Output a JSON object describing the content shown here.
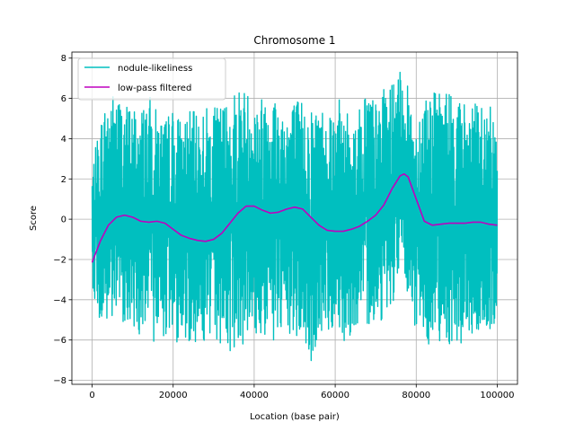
{
  "chart_data": {
    "type": "line",
    "title": "Chromosome 1",
    "xlabel": "Location (base pair)",
    "ylabel": "Score",
    "xlim": [
      -5000,
      105000
    ],
    "ylim": [
      -8.2,
      8.3
    ],
    "xticks": [
      0,
      20000,
      40000,
      60000,
      80000,
      100000
    ],
    "xtick_labels": [
      "0",
      "20000",
      "40000",
      "60000",
      "80000",
      "100000"
    ],
    "yticks": [
      -8,
      -6,
      -4,
      -2,
      0,
      2,
      4,
      6,
      8
    ],
    "ytick_labels": [
      "−8",
      "−6",
      "−4",
      "−2",
      "0",
      "2",
      "4",
      "6",
      "8"
    ],
    "grid": true,
    "legend_position": "top-left",
    "series": [
      {
        "name": "nodule-likeliness",
        "color": "#00bfbf",
        "envelope_x": [
          0,
          2000,
          4000,
          6000,
          8000,
          10000,
          12000,
          14000,
          16000,
          18000,
          20000,
          22000,
          24000,
          26000,
          28000,
          30000,
          32000,
          34000,
          36000,
          38000,
          40000,
          42000,
          44000,
          46000,
          48000,
          50000,
          52000,
          54000,
          56000,
          58000,
          60000,
          62000,
          64000,
          66000,
          68000,
          70000,
          72000,
          74000,
          76000,
          77000,
          78000,
          80000,
          82000,
          84000,
          86000,
          88000,
          90000,
          92000,
          94000,
          96000,
          98000,
          100000
        ],
        "envelope_upper": [
          2.5,
          5.0,
          6.3,
          6.4,
          5.8,
          5.7,
          5.6,
          6.2,
          5.4,
          5.0,
          5.6,
          5.0,
          5.4,
          5.3,
          5.7,
          5.5,
          5.8,
          6.1,
          6.8,
          6.5,
          6.2,
          6.2,
          7.1,
          5.9,
          5.8,
          6.0,
          6.0,
          5.7,
          5.8,
          5.6,
          6.0,
          5.9,
          4.9,
          5.6,
          6.9,
          5.8,
          6.5,
          6.8,
          7.3,
          7.3,
          6.5,
          5.0,
          6.6,
          6.4,
          6.3,
          6.6,
          6.1,
          5.9,
          5.8,
          5.8,
          5.6,
          5.6
        ],
        "envelope_lower": [
          -3.2,
          -5.5,
          -5.6,
          -5.2,
          -5.1,
          -5.6,
          -5.8,
          -6.3,
          -6.0,
          -5.8,
          -6.2,
          -6.1,
          -6.1,
          -6.1,
          -6.2,
          -6.3,
          -6.2,
          -6.8,
          -6.1,
          -6.3,
          -5.9,
          -6.0,
          -6.1,
          -6.3,
          -6.0,
          -6.1,
          -6.1,
          -7.4,
          -5.9,
          -5.8,
          -5.3,
          -6.1,
          -5.7,
          -5.6,
          -5.2,
          -5.3,
          -4.9,
          -4.3,
          -3.2,
          -2.8,
          -4.7,
          -5.6,
          -6.1,
          -6.3,
          -6.0,
          -6.2,
          -6.2,
          -6.4,
          -5.8,
          -5.8,
          -6.1,
          -5.0
        ]
      },
      {
        "name": "low-pass filtered",
        "color": "#bf00bf",
        "x": [
          0,
          2000,
          4000,
          6000,
          8000,
          10000,
          12000,
          14000,
          16000,
          18000,
          20000,
          22000,
          24000,
          26000,
          28000,
          30000,
          32000,
          34000,
          36000,
          38000,
          40000,
          42000,
          44000,
          46000,
          48000,
          50000,
          52000,
          54000,
          56000,
          58000,
          60000,
          62000,
          64000,
          66000,
          68000,
          70000,
          72000,
          74000,
          76000,
          77000,
          78000,
          80000,
          82000,
          84000,
          86000,
          88000,
          90000,
          92000,
          94000,
          96000,
          98000,
          100000
        ],
        "y": [
          -2.15,
          -1.1,
          -0.3,
          0.1,
          0.2,
          0.1,
          -0.1,
          -0.15,
          -0.1,
          -0.2,
          -0.5,
          -0.8,
          -0.95,
          -1.05,
          -1.1,
          -1.0,
          -0.7,
          -0.2,
          0.3,
          0.65,
          0.65,
          0.45,
          0.3,
          0.35,
          0.5,
          0.6,
          0.5,
          0.1,
          -0.3,
          -0.55,
          -0.6,
          -0.6,
          -0.5,
          -0.35,
          -0.1,
          0.2,
          0.7,
          1.5,
          2.15,
          2.25,
          2.1,
          1.0,
          -0.1,
          -0.3,
          -0.25,
          -0.2,
          -0.2,
          -0.2,
          -0.15,
          -0.15,
          -0.25,
          -0.3
        ]
      }
    ]
  }
}
